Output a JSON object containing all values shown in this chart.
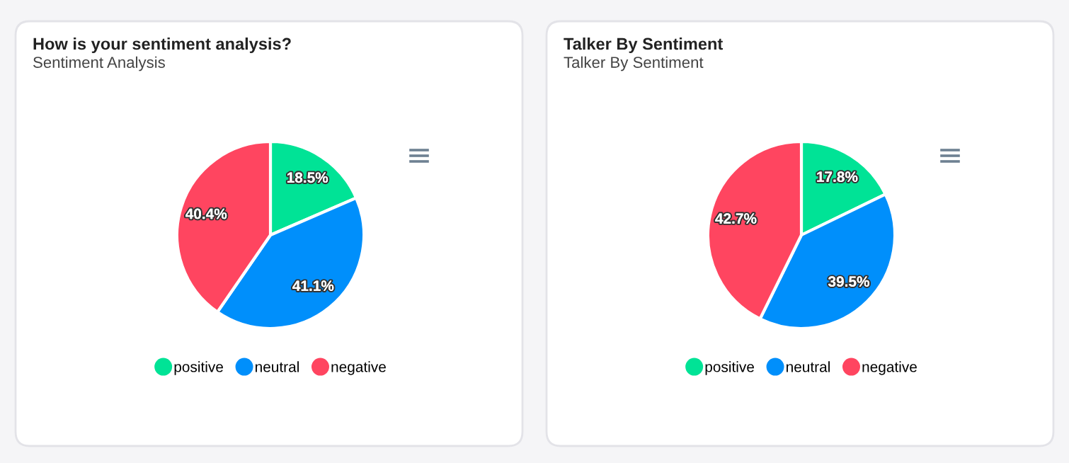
{
  "chart_data": [
    {
      "type": "pie",
      "title": "How is your sentiment analysis?",
      "subtitle": "Sentiment Analysis",
      "categories": [
        "positive",
        "neutral",
        "negative"
      ],
      "values": [
        18.5,
        41.1,
        40.4
      ],
      "value_labels": [
        "18.5%",
        "41.1%",
        "40.4%"
      ],
      "colors": [
        "#00e396",
        "#008ffb",
        "#ff4560"
      ],
      "legend": "bottom"
    },
    {
      "type": "pie",
      "title": "Talker By Sentiment",
      "subtitle": "Talker By Sentiment",
      "categories": [
        "positive",
        "neutral",
        "negative"
      ],
      "values": [
        17.8,
        39.5,
        42.7
      ],
      "value_labels": [
        "17.8%",
        "39.5%",
        "42.7%"
      ],
      "colors": [
        "#00e396",
        "#008ffb",
        "#ff4560"
      ],
      "legend": "bottom"
    }
  ]
}
